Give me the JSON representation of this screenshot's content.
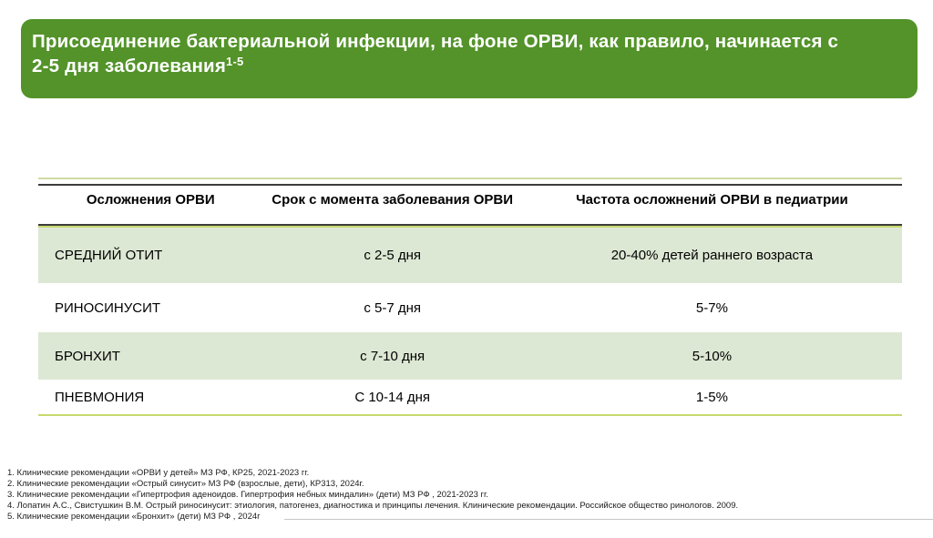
{
  "banner": {
    "title_line1": "Присоединение бактериальной инфекции, на фоне ОРВИ, как правило,  начинается с",
    "title_line2": "2-5 дня заболевания",
    "title_superscript": "1-5"
  },
  "table": {
    "columns": [
      "Осложнения ОРВИ",
      "Срок с момента заболевания ОРВИ",
      "Частота осложнений ОРВИ в педиатрии"
    ],
    "rows": [
      {
        "complication": "СРЕДНИЙ ОТИТ",
        "term": "с 2-5 дня",
        "frequency": "20-40% детей раннего возраста"
      },
      {
        "complication": "РИНОСИНУСИТ",
        "term": "с 5-7 дня",
        "frequency": "5-7%"
      },
      {
        "complication": "БРОНХИТ",
        "term": "с 7-10 дня",
        "frequency": "5-10%"
      },
      {
        "complication": "ПНЕВМОНИЯ",
        "term": "С 10-14 дня",
        "frequency": "1-5%"
      }
    ]
  },
  "references": [
    "1. Клинические рекомендации «ОРВИ у детей» МЗ РФ,  КР25, 2021-2023 гг.",
    "2. Клинические рекомендации «Острый синусит» МЗ РФ (взрослые, дети),  КР313, 2024г.",
    "3. Клинические рекомендации «Гипертрофия аденоидов. Гипертрофия небных миндалин» (дети) МЗ РФ , 2021-2023 гг.",
    "4. Лопатин А.С., Свистушкин В.М. Острый риносинусит: этиология, патогенез, диагностика и принципы лечения. Клинические рекомендации. Российское общество ринологов. 2009.",
    "5. Клинические рекомендации «Бронхит» (дети) МЗ РФ , 2024г"
  ],
  "colors": {
    "accent_green": "#539329",
    "row_shade": "#dde8d4",
    "line_soft": "#cfdba4",
    "line_bright": "#c6d96e",
    "header_border": "#3c3c3c"
  }
}
